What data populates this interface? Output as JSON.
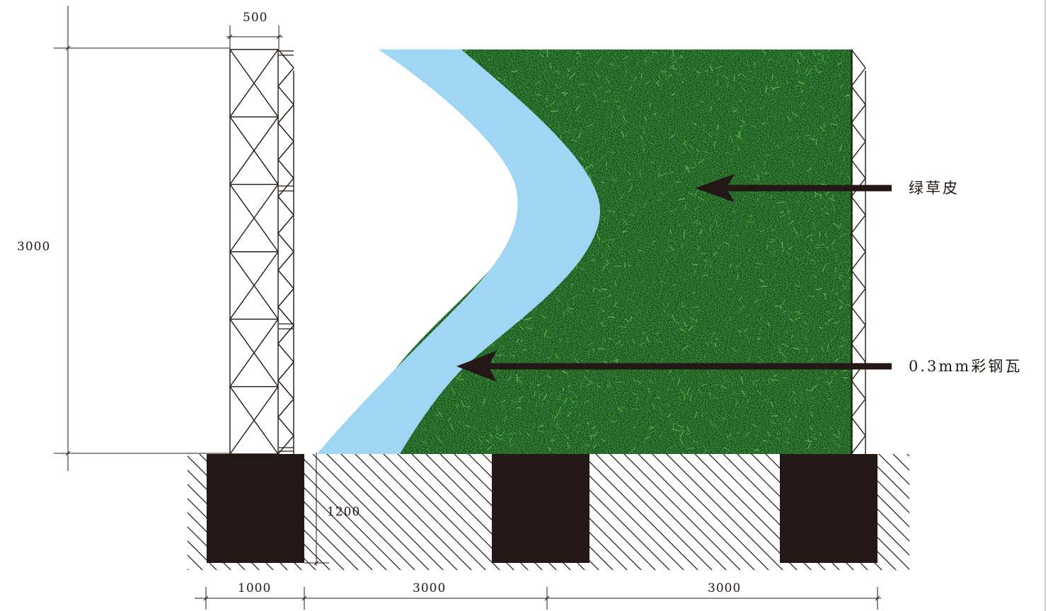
{
  "dimensions": {
    "tower_width": "500",
    "wall_height": "3000",
    "footing_depth": "1200",
    "bottom_segments": [
      "1000",
      "3000",
      "3000"
    ]
  },
  "callouts": {
    "grass": "绿草皮",
    "steel_sheet": "0.3mm彩钢瓦"
  },
  "colors": {
    "grass_dark": "#0f3f12",
    "grass_mid": "#2b7a23",
    "grass_light": "#5fc24a",
    "steel_sheet": "#9fd6f4",
    "ink": "#231815"
  }
}
